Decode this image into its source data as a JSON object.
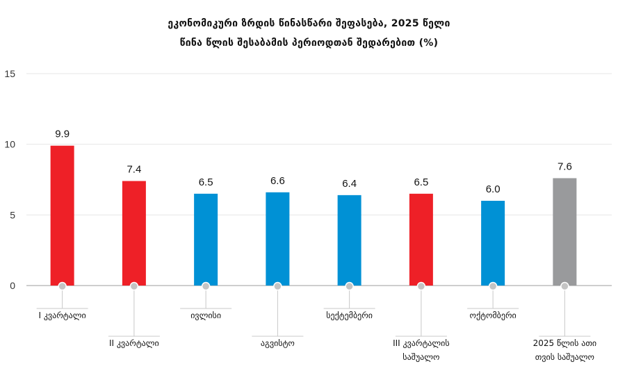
{
  "chart_data": {
    "type": "bar",
    "title_lines": [
      "ეკონომიკური ზრდის წინასწარი შეფასება, 2025 წელი",
      "წინა წლის შესაბამის პერიოდთან შედარებით (%)"
    ],
    "categories": [
      [
        "I კვარტალი"
      ],
      [
        "II კვარტალი"
      ],
      [
        "ივლისი"
      ],
      [
        "აგვისტო"
      ],
      [
        "სექტემბერი"
      ],
      [
        "III კვარტალის",
        "საშუალო"
      ],
      [
        "ოქტომბერი"
      ],
      [
        "2025 წლის ათი",
        "თვის საშუალო"
      ]
    ],
    "values": [
      9.9,
      7.4,
      6.5,
      6.6,
      6.4,
      6.5,
      6.0,
      7.6
    ],
    "value_labels": [
      "9.9",
      "7.4",
      "6.5",
      "6.6",
      "6.4",
      "6.5",
      "6.0",
      "7.6"
    ],
    "bar_colors": [
      "#ee2027",
      "#ee2027",
      "#0091d5",
      "#0091d5",
      "#0091d5",
      "#ee2027",
      "#0091d5",
      "#999a9c"
    ],
    "ylim": [
      0,
      15
    ],
    "yticks": [
      0,
      5,
      10,
      15
    ],
    "grid": true,
    "xlabel": "",
    "ylabel": ""
  }
}
